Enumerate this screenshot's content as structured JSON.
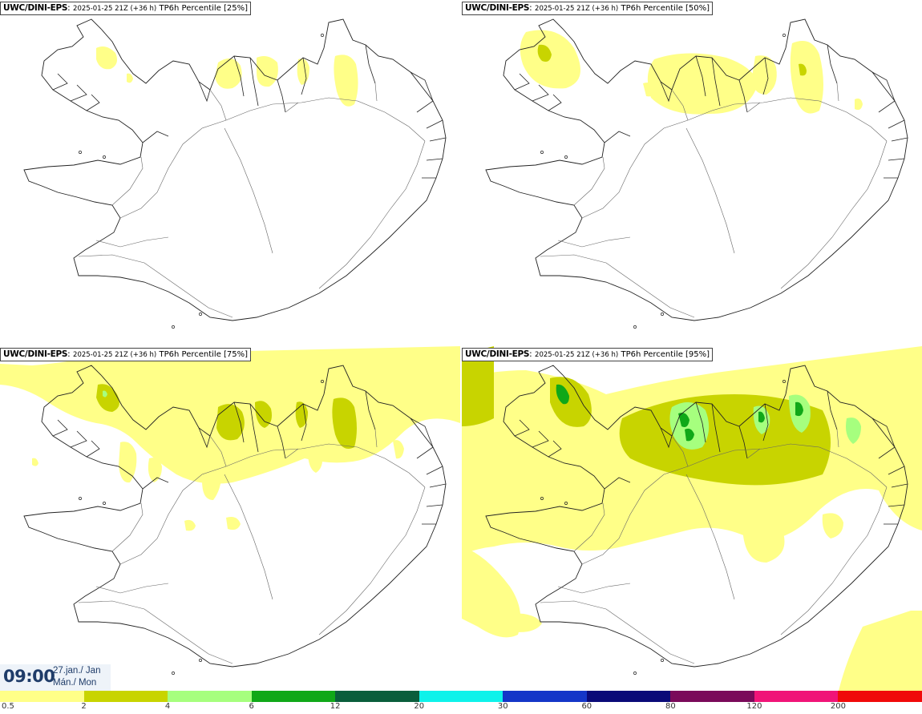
{
  "panels": [
    {
      "source": "UWC/DINI-EPS",
      "run": "2025-01-25 21Z (+36 h)",
      "field": "TP6h Percentile [25%]",
      "level": 0
    },
    {
      "source": "UWC/DINI-EPS",
      "run": "2025-01-25 21Z (+36 h)",
      "field": "TP6h Percentile [50%]",
      "level": 1
    },
    {
      "source": "UWC/DINI-EPS",
      "run": "2025-01-25 21Z (+36 h)",
      "field": "TP6h Percentile [75%]",
      "level": 2
    },
    {
      "source": "UWC/DINI-EPS",
      "run": "2025-01-25 21Z (+36 h)",
      "field": "TP6h Percentile [95%]",
      "level": 3
    }
  ],
  "timestamp": {
    "time": "09:00",
    "date_line1": "27.jan./ Jan",
    "date_line2": "Mán./ Mon"
  },
  "legend": {
    "ticks": [
      "0.5",
      "2",
      "4",
      "6",
      "12",
      "20",
      "30",
      "60",
      "80",
      "120",
      "200"
    ],
    "colors": [
      "#ffff88",
      "#c8d400",
      "#a6ff7e",
      "#10a818",
      "#0a5e3c",
      "#0ef2ea",
      "#1436c8",
      "#0a0a78",
      "#7a0a5a",
      "#f01478",
      "#f00a0a"
    ]
  },
  "colors": {
    "background": "#ffffff",
    "coastline": "#222222",
    "light_precip": "#ffff88",
    "mid_precip": "#c8d400",
    "high_precip": "#a6ff7e",
    "higher_precip": "#10a818",
    "time_text": "#1f3c69"
  }
}
